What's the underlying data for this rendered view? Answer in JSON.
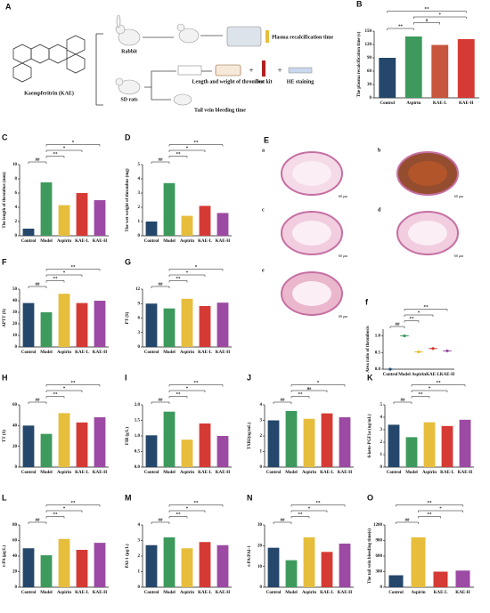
{
  "panel_a": {
    "label": "A",
    "compound": "Kaempferitrin (KAE)",
    "animals": [
      "Rabbit",
      "SD rats"
    ],
    "steps": [
      "Plasma recalcification time",
      "Length and weight of thrombus",
      "Test kit",
      "HE staining",
      "Tail vein bleeding time"
    ],
    "joiner": "+"
  },
  "panel_e": {
    "label": "E",
    "images": [
      {
        "label": "a",
        "scale": "60 μm"
      },
      {
        "label": "b",
        "scale": "60 μm"
      },
      {
        "label": "c",
        "scale": "60 μm"
      },
      {
        "label": "d",
        "scale": "60 μm"
      },
      {
        "label": "e",
        "scale": "60 μm"
      }
    ]
  },
  "chart_data": [
    {
      "type": "bar",
      "panel": "B",
      "y_label": "The plasma recalcification time (s)",
      "categories": [
        "Control",
        "Aspirin",
        "KAE-L",
        "KAE-H"
      ],
      "values": [
        90,
        138,
        119,
        132
      ],
      "colors": [
        "#24476b",
        "#3d9a5c",
        "#c8553d",
        "#d63a34"
      ],
      "ylim": [
        0,
        150
      ],
      "yticks": [
        0,
        30,
        60,
        90,
        120,
        150
      ],
      "annotations": [
        "**",
        "#",
        "*",
        "**"
      ]
    },
    {
      "type": "bar",
      "panel": "C",
      "y_label": "The length of thrombus (mm)",
      "categories": [
        "Control",
        "Model",
        "Aspirin",
        "KAE-L",
        "KAE-H"
      ],
      "values": [
        1,
        7.5,
        4.3,
        6,
        5
      ],
      "colors": [
        "#24476b",
        "#3d9a5c",
        "#e6be3c",
        "#d63a34",
        "#9c4aa3"
      ],
      "ylim": [
        0,
        10
      ],
      "yticks": [
        0,
        2,
        4,
        6,
        8,
        10
      ],
      "annotations": [
        "##",
        "**",
        "*",
        "*"
      ]
    },
    {
      "type": "bar",
      "panel": "D",
      "y_label": "The wet weight of thrombus (mg)",
      "categories": [
        "Control",
        "Model",
        "Aspirin",
        "KAE-L",
        "KAE-H"
      ],
      "values": [
        1,
        3.7,
        1.4,
        2.1,
        1.6
      ],
      "colors": [
        "#24476b",
        "#3d9a5c",
        "#e6be3c",
        "#d63a34",
        "#9c4aa3"
      ],
      "ylim": [
        0,
        5
      ],
      "yticks": [
        0,
        1,
        2,
        3,
        4,
        5
      ],
      "annotations": [
        "##",
        "**",
        "*",
        "**"
      ]
    },
    {
      "type": "bar",
      "panel": "F",
      "y_label": "APTT (S)",
      "categories": [
        "Control",
        "Model",
        "Aspirin",
        "KAE-L",
        "KAE-H"
      ],
      "values": [
        38,
        30,
        46,
        38,
        40
      ],
      "colors": [
        "#24476b",
        "#3d9a5c",
        "#e6be3c",
        "#d63a34",
        "#9c4aa3"
      ],
      "ylim": [
        0,
        50
      ],
      "yticks": [
        0,
        10,
        20,
        30,
        40,
        50
      ],
      "annotations": [
        "##",
        "**",
        "*",
        "**"
      ]
    },
    {
      "type": "bar",
      "panel": "G",
      "y_label": "PT (S)",
      "categories": [
        "Control",
        "Model",
        "Aspirin",
        "KAE-L",
        "KAE-H"
      ],
      "values": [
        9,
        8,
        10,
        8.5,
        9.2
      ],
      "colors": [
        "#24476b",
        "#3d9a5c",
        "#e6be3c",
        "#d63a34",
        "#9c4aa3"
      ],
      "ylim": [
        0,
        12
      ],
      "yticks": [
        0,
        3,
        6,
        9,
        12
      ],
      "annotations": [
        "##",
        "**",
        "*",
        "*"
      ]
    },
    {
      "type": "dot",
      "panel": "f",
      "y_label": "Area ratio of thrombosis",
      "categories": [
        "Control",
        "Model",
        "Aspirin",
        "KAE-L",
        "KAE-H"
      ],
      "values": [
        0,
        1,
        0.52,
        0.62,
        0.55
      ],
      "colors": [
        "#24476b",
        "#3d9a5c",
        "#e6be3c",
        "#d63a34",
        "#9c4aa3"
      ],
      "ylim": [
        0,
        1.2
      ],
      "yticks": [
        {
          "value": 0,
          "label": "0.0"
        },
        0.5,
        {
          "value": 1,
          "label": "1.0"
        }
      ],
      "annotations": [
        "##",
        "**",
        "*",
        "**"
      ]
    },
    {
      "type": "bar",
      "panel": "H",
      "y_label": "TT (S)",
      "categories": [
        "Control",
        "Model",
        "Aspirin",
        "KAE-L",
        "KAE-H"
      ],
      "values": [
        40,
        32,
        52,
        43,
        48
      ],
      "colors": [
        "#24476b",
        "#3d9a5c",
        "#e6be3c",
        "#d63a34",
        "#9c4aa3"
      ],
      "ylim": [
        0,
        60
      ],
      "yticks": [
        0,
        20,
        40,
        60
      ],
      "annotations": [
        "##",
        "**",
        "*",
        "**"
      ]
    },
    {
      "type": "bar",
      "panel": "I",
      "y_label": "FIB (g/L)",
      "categories": [
        "Control",
        "Model",
        "Aspirin",
        "KAE-L",
        "KAE-H"
      ],
      "values": [
        1.02,
        1.78,
        0.88,
        1.4,
        1.0
      ],
      "colors": [
        "#24476b",
        "#3d9a5c",
        "#e6be3c",
        "#d63a34",
        "#9c4aa3"
      ],
      "ylim": [
        0,
        2
      ],
      "yticks": [
        {
          "value": 0,
          "label": "0.0"
        },
        0.5,
        {
          "value": 1,
          "label": "1.0"
        },
        1.5,
        {
          "value": 2,
          "label": "2.0"
        }
      ],
      "annotations": [
        "##",
        "**",
        "*",
        "**"
      ]
    },
    {
      "type": "bar",
      "panel": "J",
      "y_label": "TXB2(ng/mL)",
      "categories": [
        "Control",
        "Model",
        "Aspirin",
        "KAE-L",
        "KAE-H"
      ],
      "values": [
        3.0,
        3.6,
        3.1,
        3.45,
        3.2
      ],
      "colors": [
        "#24476b",
        "#3d9a5c",
        "#e6be3c",
        "#d63a34",
        "#9c4aa3"
      ],
      "ylim": [
        0,
        4
      ],
      "yticks": [
        0,
        1,
        2,
        3,
        4
      ],
      "annotations": [
        "##",
        "**",
        "ns",
        "*"
      ]
    },
    {
      "type": "bar",
      "panel": "K",
      "y_label": "6-keto-PGF1α (ng/mL)",
      "categories": [
        "Control",
        "Model",
        "Aspirin",
        "KAE-L",
        "KAE-H"
      ],
      "values": [
        3.4,
        2.4,
        3.6,
        3.3,
        3.8
      ],
      "colors": [
        "#24476b",
        "#3d9a5c",
        "#e6be3c",
        "#d63a34",
        "#9c4aa3"
      ],
      "ylim": [
        0,
        5
      ],
      "yticks": [
        0,
        1,
        2,
        3,
        4,
        5
      ],
      "annotations": [
        "##",
        "**",
        "*",
        "**"
      ]
    },
    {
      "type": "bar",
      "panel": "L",
      "y_label": "t-PA (μg/L)",
      "categories": [
        "Control",
        "Model",
        "Aspirin",
        "KAE-L",
        "KAE-H"
      ],
      "values": [
        50,
        41,
        62,
        48,
        57
      ],
      "colors": [
        "#24476b",
        "#3d9a5c",
        "#e6be3c",
        "#d63a34",
        "#9c4aa3"
      ],
      "ylim": [
        0,
        80
      ],
      "yticks": [
        0,
        20,
        40,
        60,
        80
      ],
      "annotations": [
        "##",
        "**",
        "*",
        "**"
      ]
    },
    {
      "type": "bar",
      "panel": "M",
      "y_label": "PAI-1 (μg/L)",
      "categories": [
        "Control",
        "Model",
        "Aspirin",
        "KAE-L",
        "KAE-H"
      ],
      "values": [
        2.7,
        3.2,
        2.5,
        2.9,
        2.7
      ],
      "colors": [
        "#24476b",
        "#3d9a5c",
        "#e6be3c",
        "#d63a34",
        "#9c4aa3"
      ],
      "ylim": [
        0,
        4
      ],
      "yticks": [
        0,
        1,
        2,
        3,
        4
      ],
      "annotations": [
        "##",
        "**",
        "*",
        "**"
      ]
    },
    {
      "type": "bar",
      "panel": "N",
      "y_label": "t-PA/PAI-1",
      "categories": [
        "Control",
        "Model",
        "Aspirin",
        "KAE-L",
        "KAE-H"
      ],
      "values": [
        19,
        13,
        24,
        17,
        21
      ],
      "colors": [
        "#24476b",
        "#3d9a5c",
        "#e6be3c",
        "#d63a34",
        "#9c4aa3"
      ],
      "ylim": [
        0,
        30
      ],
      "yticks": [
        0,
        10,
        20,
        30
      ],
      "annotations": [
        "##",
        "**",
        "*",
        "**"
      ]
    },
    {
      "type": "bar",
      "panel": "O",
      "y_label": "The tail vein bleeding time(s)",
      "categories": [
        "Control",
        "Aspirin",
        "KAE-L",
        "KAE-H"
      ],
      "values": [
        230,
        960,
        300,
        320
      ],
      "colors": [
        "#24476b",
        "#e6be3c",
        "#d63a34",
        "#9c4aa3"
      ],
      "ylim": [
        0,
        1200
      ],
      "yticks": [
        0,
        300,
        600,
        900,
        1200
      ],
      "annotations": [
        "##",
        "**",
        "*",
        "**"
      ]
    }
  ]
}
